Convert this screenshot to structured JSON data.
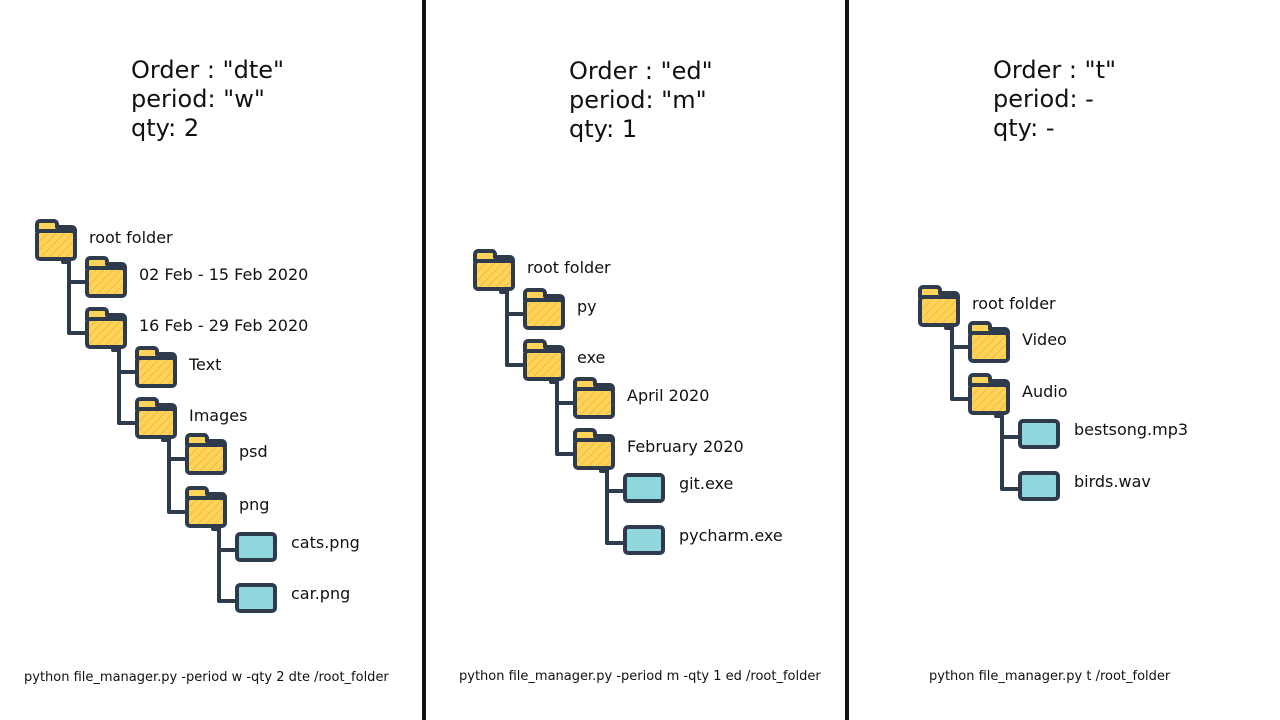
{
  "colors": {
    "folder_fill": "#fdd35a",
    "folder_hatch": "#f6b83c",
    "outline": "#2d3b4c",
    "file_fill": "#8fd6dd",
    "connector": "#2d3b4c",
    "divider": "#111111"
  },
  "icons": {
    "folder": "folder-icon",
    "file": "file-icon"
  },
  "panels": [
    {
      "params": [
        "Order : \"dte\"",
        "period: \"w\"",
        "qty: 2"
      ],
      "command": "python file_manager.py -period w -qty 2 dte /root_folder",
      "tree": [
        {
          "label": "root folder",
          "type": "folder",
          "depth": 0
        },
        {
          "label": "02 Feb - 15 Feb 2020",
          "type": "folder",
          "depth": 1
        },
        {
          "label": "16 Feb - 29 Feb 2020",
          "type": "folder",
          "depth": 1
        },
        {
          "label": "Text",
          "type": "folder",
          "depth": 2
        },
        {
          "label": "Images",
          "type": "folder",
          "depth": 2
        },
        {
          "label": "psd",
          "type": "folder",
          "depth": 3
        },
        {
          "label": "png",
          "type": "folder",
          "depth": 3
        },
        {
          "label": "cats.png",
          "type": "file",
          "depth": 4
        },
        {
          "label": "car.png",
          "type": "file",
          "depth": 4
        }
      ]
    },
    {
      "params": [
        "Order : \"ed\"",
        "period: \"m\"",
        "qty: 1"
      ],
      "command": "python file_manager.py -period m -qty 1 ed /root_folder",
      "tree": [
        {
          "label": "root folder",
          "type": "folder",
          "depth": 0
        },
        {
          "label": "py",
          "type": "folder",
          "depth": 1
        },
        {
          "label": "exe",
          "type": "folder",
          "depth": 1
        },
        {
          "label": "April 2020",
          "type": "folder",
          "depth": 2
        },
        {
          "label": "February 2020",
          "type": "folder",
          "depth": 2
        },
        {
          "label": "git.exe",
          "type": "file",
          "depth": 3
        },
        {
          "label": "pycharm.exe",
          "type": "file",
          "depth": 3
        }
      ]
    },
    {
      "params": [
        "Order : \"t\"",
        "period: -",
        "qty: -"
      ],
      "command": "python file_manager.py t /root_folder",
      "tree": [
        {
          "label": "root folder",
          "type": "folder",
          "depth": 0
        },
        {
          "label": "Video",
          "type": "folder",
          "depth": 1
        },
        {
          "label": "Audio",
          "type": "folder",
          "depth": 1
        },
        {
          "label": "bestsong.mp3",
          "type": "file",
          "depth": 2
        },
        {
          "label": "birds.wav",
          "type": "file",
          "depth": 2
        }
      ]
    }
  ]
}
